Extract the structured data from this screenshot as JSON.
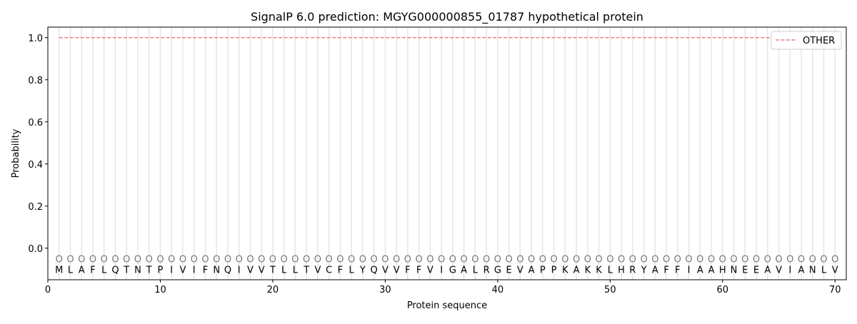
{
  "chart_data": {
    "type": "line",
    "title": "SignalP 6.0 prediction: MGYG000000855_01787 hypothetical protein",
    "xlabel": "Protein sequence",
    "ylabel": "Probability",
    "xlim": [
      0,
      71
    ],
    "ylim": [
      -0.15,
      1.05
    ],
    "xticks": [
      0,
      10,
      20,
      30,
      40,
      50,
      60,
      70
    ],
    "yticks": [
      0.0,
      0.2,
      0.4,
      0.6,
      0.8,
      1.0
    ],
    "ytick_labels": [
      "0.0",
      "0.2",
      "0.4",
      "0.6",
      "0.8",
      "1.0"
    ],
    "sequence": [
      "M",
      "L",
      "A",
      "F",
      "L",
      "Q",
      "T",
      "N",
      "T",
      "P",
      "I",
      "V",
      "I",
      "F",
      "N",
      "Q",
      "I",
      "V",
      "V",
      "T",
      "L",
      "L",
      "T",
      "V",
      "C",
      "F",
      "L",
      "Y",
      "Q",
      "V",
      "V",
      "F",
      "F",
      "V",
      "I",
      "G",
      "A",
      "L",
      "R",
      "G",
      "E",
      "V",
      "A",
      "P",
      "P",
      "K",
      "A",
      "K",
      "K",
      "L",
      "H",
      "R",
      "Y",
      "A",
      "F",
      "F",
      "I",
      "A",
      "A",
      "H",
      "N",
      "E",
      "E",
      "A",
      "V",
      "I",
      "A",
      "N",
      "L",
      "V"
    ],
    "predicted_label": "O",
    "series": [
      {
        "name": "OTHER",
        "color": "#f08080",
        "style": "dashed",
        "x_range": [
          1,
          70
        ],
        "value": 1.0
      }
    ],
    "legend": {
      "position": "top-right",
      "entries": [
        "OTHER"
      ]
    },
    "grid": "vertical lines at each residue"
  }
}
